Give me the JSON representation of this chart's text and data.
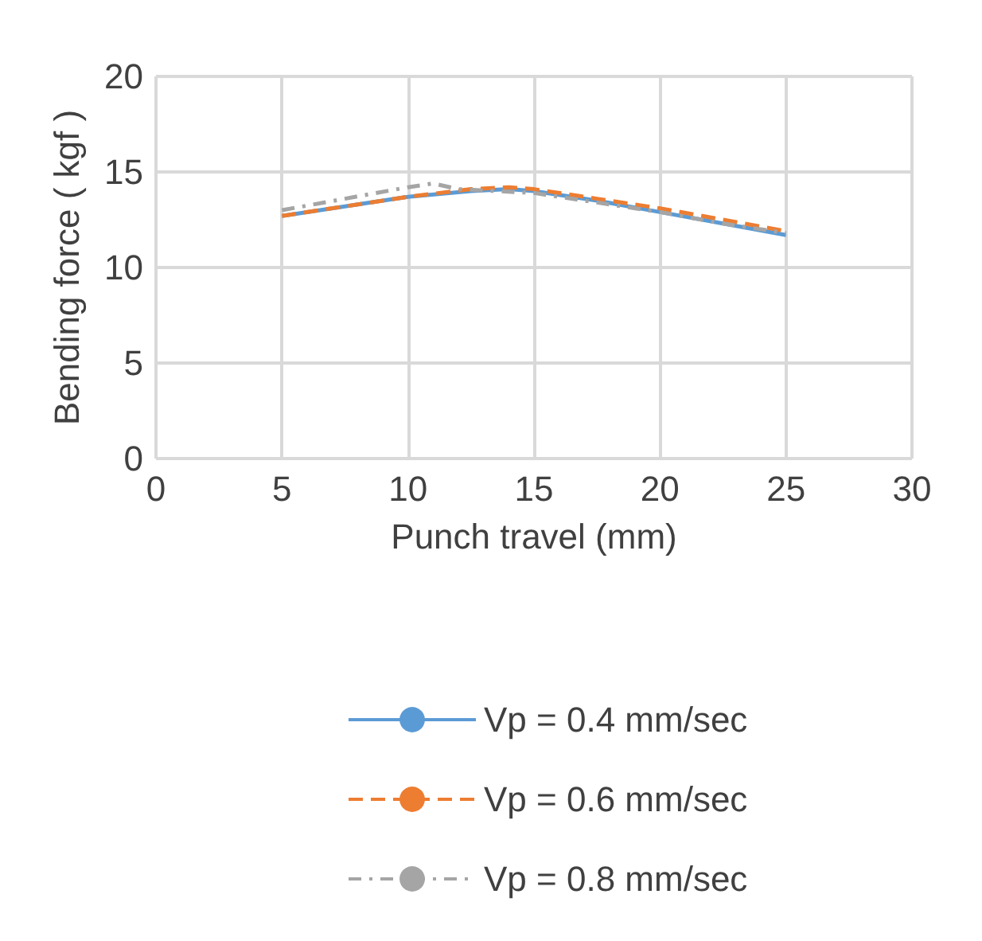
{
  "chart_data": {
    "type": "line",
    "xlabel": "Punch travel (mm)",
    "ylabel": "Bending force ( kgf )",
    "xlim": [
      0,
      30
    ],
    "xticks": [
      0,
      5,
      10,
      15,
      20,
      25,
      30
    ],
    "ylim": [
      0,
      20
    ],
    "yticks": [
      0,
      5,
      10,
      15,
      20
    ],
    "grid": true,
    "legend": "bottom",
    "marker": "none",
    "series": [
      {
        "name": "Vp = 0.4 mm/sec",
        "color": "#5b9bd5",
        "line_style": "solid",
        "x": [
          5,
          7.5,
          10,
          12.5,
          14,
          15,
          17.5,
          20,
          22.5,
          25
        ],
        "values": [
          12.7,
          13.2,
          13.7,
          14.0,
          14.1,
          14.0,
          13.5,
          12.9,
          12.3,
          11.7
        ]
      },
      {
        "name": "Vp = 0.6 mm/sec",
        "color": "#ed7d31",
        "line_style": "dashed",
        "x": [
          5,
          7.5,
          10,
          12.5,
          14,
          15,
          17.5,
          20,
          22.5,
          25
        ],
        "values": [
          12.7,
          13.2,
          13.7,
          14.1,
          14.2,
          14.1,
          13.6,
          13.1,
          12.5,
          11.9
        ]
      },
      {
        "name": "Vp = 0.8 mm/sec",
        "color": "#a5a5a5",
        "line_style": "dotted",
        "x": [
          5,
          7.5,
          10,
          11,
          12,
          15,
          17.5,
          20,
          22.5,
          25
        ],
        "values": [
          13.0,
          13.6,
          14.2,
          14.4,
          14.1,
          13.9,
          13.4,
          12.9,
          12.3,
          11.8
        ]
      }
    ]
  }
}
